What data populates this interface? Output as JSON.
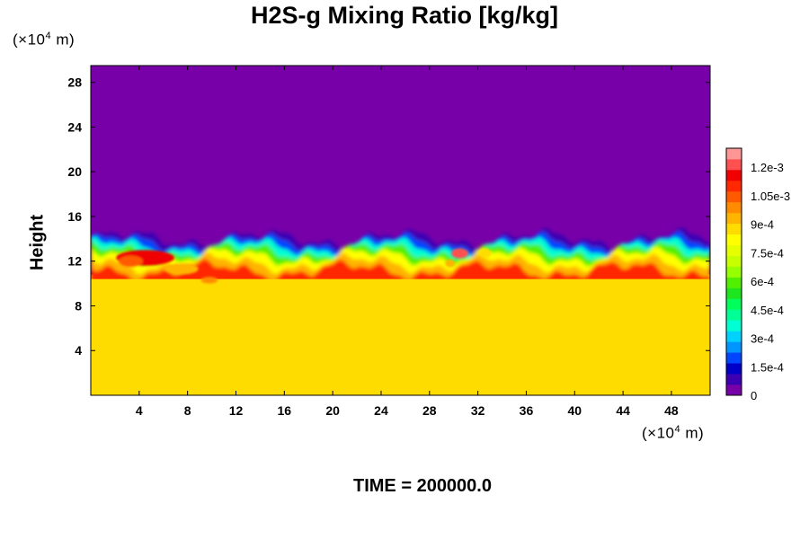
{
  "chart_data": {
    "type": "heatmap",
    "title": "H2S-g Mixing Ratio [kg/kg]",
    "ylabel": "Height",
    "x_unit_label": "(×10^4 m)",
    "y_unit_label": "(×10^4 m)",
    "x_unit_prefix": "(×10",
    "x_unit_exp": "4",
    "x_unit_suffix": " m)",
    "y_unit_prefix": "(×10",
    "y_unit_exp": "4",
    "y_unit_suffix": " m)",
    "xlim": [
      0,
      51.2
    ],
    "ylim": [
      0,
      29.5
    ],
    "x_ticks": [
      4,
      8,
      12,
      16,
      20,
      24,
      28,
      32,
      36,
      40,
      44,
      48
    ],
    "x_tick_labels": [
      "4",
      "8",
      "12",
      "16",
      "20",
      "24",
      "28",
      "32",
      "36",
      "40",
      "44",
      "48"
    ],
    "y_ticks": [
      4,
      8,
      12,
      16,
      20,
      24,
      28
    ],
    "y_tick_labels": [
      "4",
      "8",
      "12",
      "16",
      "20",
      "24",
      "28"
    ],
    "colorbar": {
      "range": [
        0,
        0.0013
      ],
      "tick_values": [
        0,
        0.00015,
        0.0003,
        0.00045,
        0.0006,
        0.00075,
        0.0009,
        0.00105,
        0.0012
      ],
      "tick_labels": [
        "0",
        "1.5e-4",
        "3e-4",
        "4.5e-4",
        "6e-4",
        "7.5e-4",
        "9e-4",
        "1.05e-3",
        "1.2e-3"
      ],
      "colors": [
        "#7800a8",
        "#3c00b4",
        "#0000c8",
        "#0046ff",
        "#0096ff",
        "#00d2ff",
        "#00ffd2",
        "#00ff96",
        "#00ff5a",
        "#1ee61e",
        "#50f000",
        "#96ff00",
        "#c8ff00",
        "#e6ff00",
        "#ffff00",
        "#ffdc00",
        "#ffb400",
        "#ff8c00",
        "#ff5a00",
        "#ff2800",
        "#f00000",
        "#ff5050",
        "#ff9696"
      ]
    },
    "field_description_values": {
      "upper_region_value": 0,
      "lower_region_value": 0.00087,
      "interface_height_approx": [
        13.5,
        14.5
      ],
      "peak_value_approx": 0.0012,
      "peak_location_approx": [
        30.5,
        12.7
      ]
    },
    "time_label": "TIME = 200000.0"
  }
}
